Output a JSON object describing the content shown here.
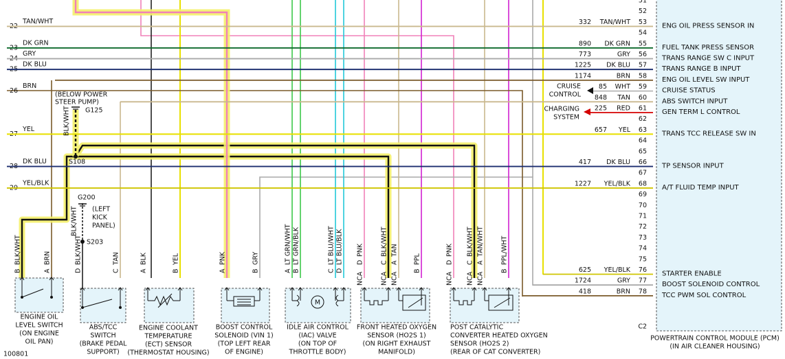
{
  "figure_id": "100801",
  "left_wires": [
    {
      "number": "22",
      "color": "TAN/WHT"
    },
    {
      "number": "23",
      "color": "DK GRN"
    },
    {
      "number": "24",
      "color": "GRY"
    },
    {
      "number": "25",
      "color": "DK BLU"
    },
    {
      "number": "26",
      "color": "BRN"
    },
    {
      "number": "27",
      "color": "YEL"
    },
    {
      "number": "28",
      "color": "DK BLU"
    },
    {
      "number": "29",
      "color": "YEL/BLK"
    }
  ],
  "pcm": {
    "pins": [
      "51",
      "52",
      "53",
      "54",
      "55",
      "56",
      "57",
      "58",
      "59",
      "60",
      "61",
      "62",
      "63",
      "64",
      "65",
      "66",
      "67",
      "68",
      "69",
      "70",
      "71",
      "72",
      "73",
      "74",
      "75",
      "76",
      "77",
      "78"
    ],
    "connector": "C2",
    "circuits": [
      {
        "number": "332",
        "color": "TAN/WHT",
        "function": "ENG OIL PRESS SENSOR IN"
      },
      {
        "number": "890",
        "color": "DK GRN",
        "function": "FUEL TANK PRESS SENSOR"
      },
      {
        "number": "773",
        "color": "GRY",
        "function": "TRANS RANGE SW C INPUT"
      },
      {
        "number": "1225",
        "color": "DK BLU",
        "function": "TRANS RANGE B INPUT"
      },
      {
        "number": "1174",
        "color": "BRN",
        "function": "ENG OIL LEVEL SW INPUT"
      },
      {
        "number": "85",
        "color": "WHT",
        "function": "CRUISE STATUS"
      },
      {
        "number": "848",
        "color": "TAN",
        "function": "ABS SWITCH INPUT"
      },
      {
        "number": "225",
        "color": "RED",
        "function": "GEN TERM L CONTROL"
      },
      {
        "number": "657",
        "color": "YEL",
        "function": "TRANS TCC RELEASE SW IN"
      },
      {
        "number": "417",
        "color": "DK BLU",
        "function": "TP SENSOR INPUT"
      },
      {
        "number": "1227",
        "color": "YEL/BLK",
        "function": "A/T FLUID TEMP INPUT"
      },
      {
        "number": "625",
        "color": "YEL/BLK",
        "function": "STARTER ENABLE"
      },
      {
        "number": "1724",
        "color": "GRY",
        "function": "BOOST SOLENOID CONTROL"
      },
      {
        "number": "418",
        "color": "BRN",
        "function": "TCC PWM SOL CONTROL"
      }
    ],
    "title": "POWERTRAIN CONTROL MODULE (PCM)",
    "location": "(IN AIR CLEANER HOUSING)"
  },
  "systems": [
    {
      "lines": [
        "CRUISE",
        "CONTROL"
      ]
    },
    {
      "lines": [
        "CHARGING",
        "SYSTEM"
      ]
    }
  ],
  "grounds": [
    {
      "id": "G125",
      "location": [
        "(BELOW POWER",
        "STEER PUMP)"
      ],
      "wire": "BLK/WHT"
    },
    {
      "id": "G200",
      "location": [
        "(LEFT",
        "KICK",
        "PANEL)"
      ],
      "wire": "BLK/WHT"
    }
  ],
  "splices": [
    "S108",
    "S203"
  ],
  "components": [
    {
      "name": [
        "ENGINE OIL",
        "LEVEL SWITCH",
        "(ON ENGINE",
        "OIL PAN)"
      ],
      "pins": [
        {
          "pin": "B",
          "color": "BLK/WHT"
        },
        {
          "pin": "A",
          "color": "BRN"
        }
      ]
    },
    {
      "name": [
        "ABS/TCC",
        "SWITCH",
        "(BRAKE PEDAL",
        "SUPPORT)"
      ],
      "pins": [
        {
          "pin": "D",
          "color": "BLK/WHT"
        },
        {
          "pin": "C",
          "color": "TAN"
        }
      ]
    },
    {
      "name": [
        "ENGINE COOLANT",
        "TEMPERATURE",
        "(ECT) SENSOR",
        "(THERMOSTAT HOUSING)"
      ],
      "pins": [
        {
          "pin": "A",
          "color": "BLK"
        },
        {
          "pin": "B",
          "color": "YEL"
        }
      ]
    },
    {
      "name": [
        "BOOST CONTROL",
        "SOLENOID  (VIN 1)",
        "(TOP LEFT REAR",
        "OF ENGINE)"
      ],
      "pins": [
        {
          "pin": "A",
          "color": "PNK"
        },
        {
          "pin": "B",
          "color": "GRY"
        }
      ]
    },
    {
      "name": [
        "IDLE AIR CONTROL",
        "(IAC) VALVE",
        "(ON TOP OF",
        "THROTTLE BODY)"
      ],
      "motor_symbol": "M",
      "pins": [
        {
          "pin": "A",
          "color": "LT GRN/WHT"
        },
        {
          "pin": "B",
          "color": "LT GRN/BLK"
        },
        {
          "pin": "C",
          "color": "LT BLU/WHT"
        },
        {
          "pin": "D",
          "color": "LT BLU/BLK"
        }
      ]
    },
    {
      "name": [
        "FRONT HEATED OXYGEN",
        "SENSOR (HO2S 1)",
        "(ON RIGHT EXHAUST",
        "MANIFOLD)"
      ],
      "pins": [
        {
          "pin": "D",
          "color": "PNK",
          "note": "NCA"
        },
        {
          "pin": "C",
          "color": "BLK/WHT",
          "note": "NCA"
        },
        {
          "pin": "A",
          "color": "TAN",
          "note": "NCA"
        },
        {
          "pin": "B",
          "color": "PPL"
        }
      ]
    },
    {
      "name": [
        "POST CATALYTIC",
        "CONVERTER HEATED OXYGEN",
        "SENSOR (HO2S 2)",
        "(REAR OF CAT CONVERTER)"
      ],
      "pins": [
        {
          "pin": "D",
          "color": "PNK",
          "note": "NCA"
        },
        {
          "pin": "C",
          "color": "BLK/WHT",
          "note": "NCA"
        },
        {
          "pin": "A",
          "color": "TAN/WHT",
          "note": "NCA"
        },
        {
          "pin": "B",
          "color": "PPL/WHT"
        }
      ]
    }
  ]
}
